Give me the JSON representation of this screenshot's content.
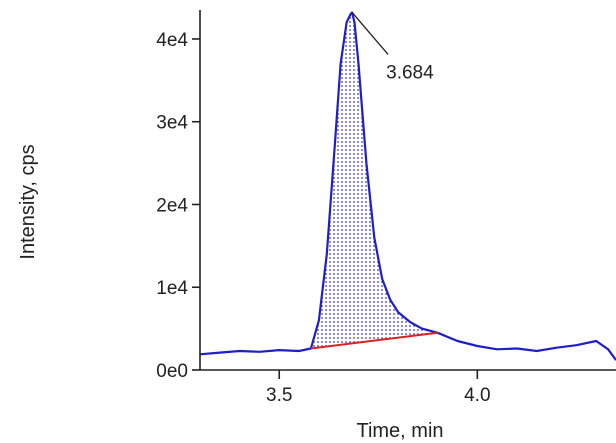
{
  "chart_data": {
    "type": "line",
    "title": "",
    "xlabel": "Time, min",
    "ylabel": "Intensity, cps",
    "xlim": [
      3.3,
      4.35
    ],
    "ylim": [
      0,
      43500
    ],
    "x_ticks": [
      3.5,
      4.0
    ],
    "x_tick_labels": [
      "3.5",
      "4.0"
    ],
    "y_ticks": [
      0,
      10000,
      20000,
      30000,
      40000
    ],
    "y_tick_labels": [
      "0e0",
      "1e4",
      "2e4",
      "3e4",
      "4e4"
    ],
    "grid": false,
    "series": [
      {
        "x": [
          3.3,
          3.35,
          3.4,
          3.45,
          3.5,
          3.55,
          3.58,
          3.6,
          3.62,
          3.64,
          3.655,
          3.67,
          3.68,
          3.684,
          3.69,
          3.7,
          3.72,
          3.74,
          3.76,
          3.78,
          3.8,
          3.83,
          3.86,
          3.9,
          3.95,
          4.0,
          4.05,
          4.1,
          4.15,
          4.2,
          4.25,
          4.3,
          4.33,
          4.35
        ],
        "y": [
          1900,
          2100,
          2300,
          2200,
          2400,
          2300,
          2600,
          6000,
          14000,
          27000,
          37000,
          42000,
          43000,
          43200,
          42000,
          37000,
          25000,
          16000,
          11000,
          8500,
          7000,
          5800,
          5000,
          4500,
          3500,
          2900,
          2500,
          2600,
          2300,
          2700,
          3000,
          3500,
          2500,
          1200
        ],
        "color": "#1f1fc8"
      }
    ],
    "baseline": {
      "x": [
        3.58,
        3.9
      ],
      "y": [
        2600,
        4500
      ],
      "color": "#e02020"
    },
    "shaded_peak": {
      "x_start": 3.58,
      "x_end": 3.9,
      "pattern": "dotted"
    },
    "annotations": [
      {
        "text": "3.684",
        "x": 3.684,
        "y": 43200
      }
    ]
  }
}
